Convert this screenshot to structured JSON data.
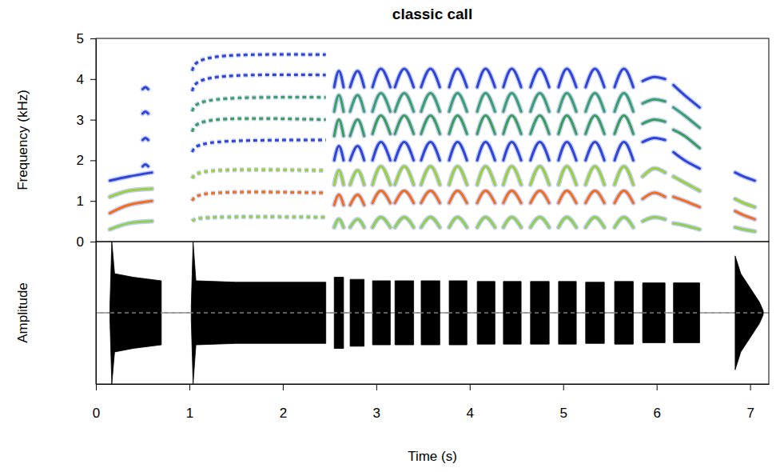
{
  "chart_data": [
    {
      "type": "spectrogram",
      "title": "classic call",
      "ylabel": "Frequency (kHz)",
      "xlim": [
        0,
        7.2
      ],
      "ylim": [
        0,
        5
      ],
      "yticks": [
        0,
        1,
        2,
        3,
        4,
        5
      ],
      "tick_labels": "y",
      "colors": [
        "#8fd14f",
        "#f46d1b",
        "#9bd13a",
        "#2f45d8",
        "#3a9e5b",
        "#3aa06a",
        "#2f45d8",
        "#2f45d8"
      ],
      "series": [
        {
          "x": [
            0.15,
            0.35,
            0.6
          ],
          "line_style": "solid",
          "harmonics": [
            [
              0.3,
              0.45,
              0.5
            ],
            [
              0.7,
              0.9,
              1.0
            ],
            [
              1.1,
              1.25,
              1.3
            ],
            [
              1.5,
              1.6,
              1.7
            ]
          ]
        },
        {
          "x": [
            0.5,
            0.53,
            0.56
          ],
          "line_style": "solid",
          "colors": [
            "#2f45d8",
            "#2f45d8",
            "#2f45d8",
            "#2f45d8"
          ],
          "harmonics": [
            [
              1.85,
              1.9,
              1.85
            ],
            [
              2.5,
              2.55,
              2.5
            ],
            [
              3.15,
              3.2,
              3.15
            ],
            [
              3.75,
              3.8,
              3.75
            ]
          ]
        },
        {
          "x": [
            1.03,
            1.3,
            2.46
          ],
          "line_style": "dashed",
          "harmonics": [
            [
              0.5,
              0.6,
              0.6
            ],
            [
              1.0,
              1.2,
              1.2
            ],
            [
              1.55,
              1.75,
              1.75
            ],
            [
              2.2,
              2.45,
              2.5
            ],
            [
              2.7,
              3.0,
              3.0
            ],
            [
              3.2,
              3.5,
              3.55
            ],
            [
              3.7,
              4.05,
              4.1
            ],
            [
              4.2,
              4.55,
              4.6
            ]
          ]
        },
        {
          "x": [
            2.55,
            2.6,
            2.65
          ],
          "line_style": "solid",
          "harmonics": [
            [
              0.35,
              0.55,
              0.35
            ],
            [
              0.9,
              1.15,
              0.9
            ],
            [
              1.4,
              1.75,
              1.4
            ],
            [
              2.0,
              2.35,
              2.0
            ],
            [
              2.6,
              3.0,
              2.6
            ],
            [
              3.2,
              3.6,
              3.2
            ],
            [
              3.8,
              4.2,
              3.8
            ]
          ]
        },
        {
          "x": [
            2.72,
            2.8,
            2.87
          ],
          "line_style": "solid",
          "harmonics": [
            [
              0.35,
              0.55,
              0.35
            ],
            [
              0.9,
              1.15,
              0.9
            ],
            [
              1.4,
              1.75,
              1.4
            ],
            [
              2.0,
              2.35,
              2.0
            ],
            [
              2.6,
              3.0,
              2.6
            ],
            [
              3.2,
              3.6,
              3.2
            ],
            [
              3.8,
              4.2,
              3.8
            ]
          ]
        },
        {
          "x": [
            2.96,
            3.05,
            3.15
          ],
          "line_style": "solid",
          "harmonics": [
            [
              0.35,
              0.6,
              0.35
            ],
            [
              0.95,
              1.25,
              0.95
            ],
            [
              1.4,
              1.85,
              1.4
            ],
            [
              2.0,
              2.45,
              2.0
            ],
            [
              2.65,
              3.1,
              2.65
            ],
            [
              3.2,
              3.65,
              3.2
            ],
            [
              3.8,
              4.25,
              3.8
            ]
          ]
        },
        {
          "x": [
            3.2,
            3.3,
            3.4
          ],
          "line_style": "solid",
          "harmonics": [
            [
              0.35,
              0.6,
              0.35
            ],
            [
              0.95,
              1.25,
              0.95
            ],
            [
              1.4,
              1.85,
              1.4
            ],
            [
              2.0,
              2.45,
              2.0
            ],
            [
              2.65,
              3.1,
              2.65
            ],
            [
              3.2,
              3.65,
              3.2
            ],
            [
              3.8,
              4.25,
              3.8
            ]
          ]
        },
        {
          "x": [
            3.48,
            3.58,
            3.68
          ],
          "line_style": "solid",
          "harmonics": [
            [
              0.35,
              0.6,
              0.35
            ],
            [
              0.95,
              1.25,
              0.95
            ],
            [
              1.4,
              1.85,
              1.4
            ],
            [
              2.0,
              2.45,
              2.0
            ],
            [
              2.65,
              3.1,
              2.65
            ],
            [
              3.2,
              3.65,
              3.2
            ],
            [
              3.8,
              4.25,
              3.8
            ]
          ]
        },
        {
          "x": [
            3.78,
            3.87,
            3.97
          ],
          "line_style": "solid",
          "harmonics": [
            [
              0.35,
              0.6,
              0.35
            ],
            [
              0.95,
              1.25,
              0.95
            ],
            [
              1.4,
              1.85,
              1.4
            ],
            [
              2.0,
              2.45,
              2.0
            ],
            [
              2.65,
              3.1,
              2.65
            ],
            [
              3.2,
              3.65,
              3.2
            ],
            [
              3.8,
              4.25,
              3.8
            ]
          ]
        },
        {
          "x": [
            4.08,
            4.17,
            4.27
          ],
          "line_style": "solid",
          "harmonics": [
            [
              0.35,
              0.6,
              0.35
            ],
            [
              0.95,
              1.25,
              0.95
            ],
            [
              1.4,
              1.85,
              1.4
            ],
            [
              2.0,
              2.45,
              2.0
            ],
            [
              2.65,
              3.1,
              2.65
            ],
            [
              3.2,
              3.65,
              3.2
            ],
            [
              3.8,
              4.25,
              3.8
            ]
          ]
        },
        {
          "x": [
            4.36,
            4.45,
            4.55
          ],
          "line_style": "solid",
          "harmonics": [
            [
              0.35,
              0.6,
              0.35
            ],
            [
              0.95,
              1.25,
              0.95
            ],
            [
              1.4,
              1.85,
              1.4
            ],
            [
              2.0,
              2.45,
              2.0
            ],
            [
              2.65,
              3.1,
              2.65
            ],
            [
              3.2,
              3.65,
              3.2
            ],
            [
              3.8,
              4.25,
              3.8
            ]
          ]
        },
        {
          "x": [
            4.65,
            4.75,
            4.85
          ],
          "line_style": "solid",
          "harmonics": [
            [
              0.35,
              0.6,
              0.35
            ],
            [
              0.95,
              1.25,
              0.95
            ],
            [
              1.4,
              1.85,
              1.4
            ],
            [
              2.0,
              2.45,
              2.0
            ],
            [
              2.65,
              3.1,
              2.65
            ],
            [
              3.2,
              3.65,
              3.2
            ],
            [
              3.8,
              4.25,
              3.8
            ]
          ]
        },
        {
          "x": [
            4.95,
            5.04,
            5.14
          ],
          "line_style": "solid",
          "harmonics": [
            [
              0.35,
              0.6,
              0.35
            ],
            [
              0.95,
              1.25,
              0.95
            ],
            [
              1.4,
              1.85,
              1.4
            ],
            [
              2.0,
              2.45,
              2.0
            ],
            [
              2.65,
              3.1,
              2.65
            ],
            [
              3.2,
              3.65,
              3.2
            ],
            [
              3.8,
              4.25,
              3.8
            ]
          ]
        },
        {
          "x": [
            5.24,
            5.34,
            5.44
          ],
          "line_style": "solid",
          "harmonics": [
            [
              0.35,
              0.6,
              0.35
            ],
            [
              0.95,
              1.25,
              0.95
            ],
            [
              1.4,
              1.85,
              1.4
            ],
            [
              2.0,
              2.45,
              2.0
            ],
            [
              2.65,
              3.1,
              2.65
            ],
            [
              3.2,
              3.65,
              3.2
            ],
            [
              3.8,
              4.25,
              3.8
            ]
          ]
        },
        {
          "x": [
            5.55,
            5.65,
            5.75
          ],
          "line_style": "solid",
          "harmonics": [
            [
              0.35,
              0.6,
              0.35
            ],
            [
              0.95,
              1.25,
              0.95
            ],
            [
              1.4,
              1.85,
              1.4
            ],
            [
              2.0,
              2.45,
              2.0
            ],
            [
              2.65,
              3.1,
              2.65
            ],
            [
              3.2,
              3.65,
              3.2
            ],
            [
              3.8,
              4.25,
              3.8
            ]
          ]
        },
        {
          "x": [
            5.85,
            5.97,
            6.09
          ],
          "line_style": "solid",
          "harmonics": [
            [
              0.5,
              0.6,
              0.55
            ],
            [
              1.05,
              1.2,
              1.1
            ],
            [
              1.6,
              1.8,
              1.7
            ],
            [
              2.45,
              2.55,
              2.5
            ],
            [
              2.9,
              3.0,
              2.95
            ],
            [
              3.4,
              3.5,
              3.45
            ],
            [
              3.95,
              4.05,
              4.0
            ]
          ]
        },
        {
          "x": [
            6.18,
            6.3,
            6.46
          ],
          "line_style": "solid",
          "harmonics": [
            [
              0.45,
              0.4,
              0.3
            ],
            [
              1.1,
              1.0,
              0.85
            ],
            [
              1.6,
              1.45,
              1.25
            ],
            [
              2.2,
              2.0,
              1.8
            ],
            [
              2.75,
              2.6,
              2.3
            ],
            [
              3.3,
              3.1,
              2.8
            ],
            [
              3.85,
              3.6,
              3.3
            ]
          ]
        },
        {
          "x": [
            6.84,
            6.93,
            7.05
          ],
          "line_style": "solid",
          "harmonics": [
            [
              0.35,
              0.3,
              0.25
            ],
            [
              0.75,
              0.65,
              0.55
            ],
            [
              1.05,
              0.95,
              0.85
            ],
            [
              1.7,
              1.6,
              1.5
            ]
          ]
        }
      ]
    },
    {
      "type": "waveform",
      "xlabel": "Time (s)",
      "ylabel": "Amplitude",
      "xlim": [
        0,
        7.2
      ],
      "ylim": [
        -1,
        1
      ],
      "xticks": [
        0,
        1,
        2,
        3,
        4,
        5,
        6,
        7
      ],
      "tick_labels": "x",
      "color": "#000000",
      "x": [
        0.15,
        0.17,
        0.2,
        0.4,
        0.7,
        0.85,
        1.02,
        1.04,
        1.07,
        1.5,
        2.46,
        2.5,
        2.55,
        2.65,
        2.7,
        2.72,
        2.87,
        2.9,
        2.96,
        3.15,
        3.18,
        3.2,
        3.4,
        3.45,
        3.48,
        3.68,
        3.7,
        3.78,
        3.97,
        4.0,
        4.08,
        4.27,
        4.3,
        4.36,
        4.55,
        4.6,
        4.65,
        4.85,
        4.9,
        4.95,
        5.14,
        5.2,
        5.24,
        5.44,
        5.5,
        5.55,
        5.75,
        5.8,
        5.85,
        6.09,
        6.12,
        6.18,
        6.46,
        6.6,
        6.84,
        6.9,
        7.0,
        7.1,
        7.14
      ],
      "values": [
        0.1,
        1.0,
        0.55,
        0.5,
        0.45,
        null,
        0.1,
        1.0,
        0.45,
        0.43,
        0.43,
        null,
        0.5,
        0.5,
        null,
        0.47,
        0.47,
        null,
        0.45,
        0.45,
        null,
        0.45,
        0.45,
        null,
        0.45,
        0.45,
        null,
        0.45,
        0.45,
        null,
        0.44,
        0.44,
        null,
        0.44,
        0.44,
        null,
        0.44,
        0.44,
        null,
        0.44,
        0.44,
        null,
        0.43,
        0.43,
        null,
        0.44,
        0.44,
        null,
        0.42,
        0.42,
        null,
        0.42,
        0.42,
        null,
        0.8,
        0.55,
        0.35,
        0.15,
        0.03
      ]
    }
  ]
}
